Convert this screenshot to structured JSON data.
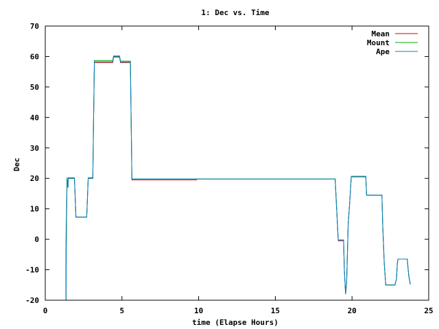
{
  "chart_data": {
    "type": "line",
    "title": "1: Dec vs. Time",
    "xlabel": "time (Elapse Hours)",
    "ylabel": "Dec",
    "xlim": [
      0,
      25
    ],
    "ylim": [
      -20,
      70
    ],
    "xticks": [
      0,
      5,
      10,
      15,
      20,
      25
    ],
    "yticks": [
      -20,
      -10,
      0,
      10,
      20,
      30,
      40,
      50,
      60,
      70
    ],
    "grid": false,
    "legend": "top-right",
    "series": [
      {
        "name": "Mean",
        "color": "#cc0000",
        "points": [
          [
            0,
            -20
          ],
          [
            1.35,
            -20
          ],
          [
            1.35,
            -7
          ],
          [
            1.42,
            20
          ],
          [
            1.48,
            17
          ],
          [
            1.5,
            20
          ],
          [
            1.9,
            20
          ],
          [
            2,
            7.3
          ],
          [
            2.7,
            7.3
          ],
          [
            2.8,
            20
          ],
          [
            3.1,
            20
          ],
          [
            3.15,
            39
          ],
          [
            3.2,
            58
          ],
          [
            4.4,
            58
          ],
          [
            4.45,
            59.8
          ],
          [
            4.85,
            59.8
          ],
          [
            4.9,
            58
          ],
          [
            5.55,
            58
          ],
          [
            5.6,
            39
          ],
          [
            5.65,
            19.5
          ],
          [
            9.85,
            19.5
          ],
          [
            9.9,
            19.8
          ],
          [
            18.9,
            19.8
          ],
          [
            19.0,
            10
          ],
          [
            19.1,
            -0.5
          ],
          [
            19.45,
            -0.5
          ],
          [
            19.5,
            -10
          ],
          [
            19.58,
            -18
          ],
          [
            19.65,
            -14
          ],
          [
            19.75,
            5
          ],
          [
            19.85,
            12
          ],
          [
            19.95,
            20.5
          ],
          [
            20.9,
            20.5
          ],
          [
            20.95,
            14.5
          ],
          [
            21.95,
            14.5
          ],
          [
            22.0,
            5
          ],
          [
            22.1,
            -8
          ],
          [
            22.2,
            -15
          ],
          [
            22.8,
            -15
          ],
          [
            22.9,
            -13
          ],
          [
            22.95,
            -8
          ],
          [
            23,
            -6.5
          ],
          [
            23.6,
            -6.5
          ],
          [
            23.7,
            -12
          ],
          [
            23.8,
            -14.8
          ]
        ]
      },
      {
        "name": "Mount",
        "color": "#00aa00",
        "points": [
          [
            0,
            -20
          ],
          [
            1.35,
            -20
          ],
          [
            1.35,
            0
          ],
          [
            1.42,
            20.3
          ],
          [
            1.48,
            17
          ],
          [
            1.5,
            20.2
          ],
          [
            1.9,
            20.2
          ],
          [
            2,
            7.3
          ],
          [
            2.7,
            7.3
          ],
          [
            2.8,
            20.2
          ],
          [
            3.1,
            20.2
          ],
          [
            3.15,
            39
          ],
          [
            3.2,
            58.7
          ],
          [
            4.4,
            58.7
          ],
          [
            4.45,
            60.2
          ],
          [
            4.85,
            60.2
          ],
          [
            4.9,
            58.5
          ],
          [
            5.55,
            58.5
          ],
          [
            5.6,
            39
          ],
          [
            5.65,
            19.8
          ],
          [
            18.9,
            19.8
          ],
          [
            19.0,
            10
          ],
          [
            19.1,
            -0.2
          ],
          [
            19.45,
            -0.2
          ],
          [
            19.5,
            -10
          ],
          [
            19.58,
            -17.8
          ],
          [
            19.65,
            -14
          ],
          [
            19.75,
            5
          ],
          [
            19.85,
            12
          ],
          [
            19.95,
            20.7
          ],
          [
            20.9,
            20.7
          ],
          [
            20.95,
            14.5
          ],
          [
            21.95,
            14.5
          ],
          [
            22.0,
            5
          ],
          [
            22.1,
            -8
          ],
          [
            22.2,
            -15
          ],
          [
            22.8,
            -15
          ],
          [
            22.9,
            -13
          ],
          [
            22.95,
            -8
          ],
          [
            23,
            -6.5
          ],
          [
            23.6,
            -6.5
          ],
          [
            23.7,
            -12
          ],
          [
            23.8,
            -14.8
          ]
        ]
      },
      {
        "name": "Ape",
        "color": "#0080cc",
        "points": [
          [
            0,
            -20
          ],
          [
            1.35,
            -20
          ],
          [
            1.38,
            5
          ],
          [
            1.42,
            20
          ],
          [
            1.48,
            17
          ],
          [
            1.5,
            20
          ],
          [
            1.9,
            20
          ],
          [
            2,
            7.3
          ],
          [
            2.7,
            7.3
          ],
          [
            2.8,
            20
          ],
          [
            3.1,
            20
          ],
          [
            3.15,
            39
          ],
          [
            3.2,
            58.3
          ],
          [
            4.4,
            58.3
          ],
          [
            4.45,
            60
          ],
          [
            4.85,
            60
          ],
          [
            4.9,
            58.2
          ],
          [
            5.55,
            58.2
          ],
          [
            5.6,
            39
          ],
          [
            5.65,
            19.8
          ],
          [
            18.9,
            19.8
          ],
          [
            19.0,
            10
          ],
          [
            19.1,
            -0.3
          ],
          [
            19.45,
            -0.3
          ],
          [
            19.5,
            -10
          ],
          [
            19.58,
            -18
          ],
          [
            19.65,
            -14
          ],
          [
            19.75,
            5
          ],
          [
            19.85,
            12
          ],
          [
            19.95,
            20.6
          ],
          [
            20.9,
            20.6
          ],
          [
            20.95,
            14.5
          ],
          [
            21.95,
            14.5
          ],
          [
            22.0,
            5
          ],
          [
            22.1,
            -8
          ],
          [
            22.2,
            -15
          ],
          [
            22.8,
            -15
          ],
          [
            22.9,
            -13
          ],
          [
            22.95,
            -8
          ],
          [
            23,
            -6.5
          ],
          [
            23.6,
            -6.5
          ],
          [
            23.7,
            -12
          ],
          [
            23.8,
            -14.8
          ]
        ]
      }
    ]
  }
}
